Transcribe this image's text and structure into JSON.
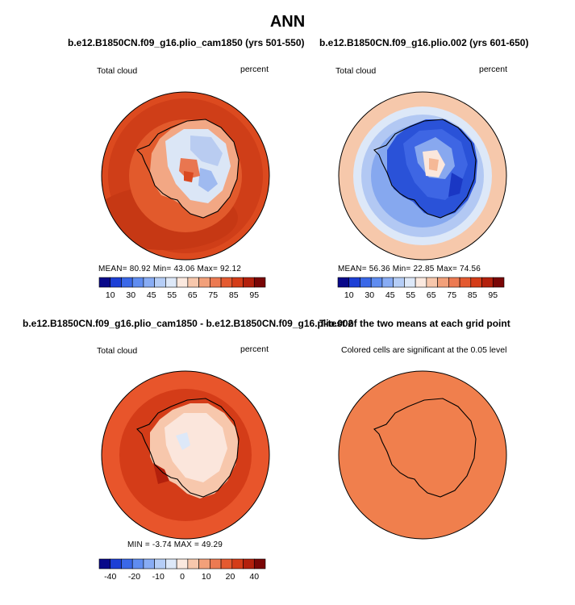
{
  "title": "ANN",
  "panels": [
    {
      "title": "b.e12.B1850CN.f09_g16.plio_cam1850 (yrs 501-550)",
      "variable": "Total cloud",
      "units": "percent",
      "stats": {
        "mean": "80.92",
        "min": "43.06",
        "max": "92.12"
      },
      "stats_text": "MEAN=   80.92   Min=   43.06   Max=   92.12"
    },
    {
      "title": "b.e12.B1850CN.f09_g16.plio.002 (yrs 601-650)",
      "variable": "Total cloud",
      "units": "percent",
      "stats": {
        "mean": "56.36",
        "min": "22.85",
        "max": "74.56"
      },
      "stats_text": "MEAN=   56.36   Min=   22.85   Max=   74.56"
    },
    {
      "title": "b.e12.B1850CN.f09_g16.plio_cam1850 - b.e12.B1850CN.f09_g16.plio.002",
      "variable": "Total cloud",
      "units": "percent",
      "stats": {
        "min": "-3.74",
        "max": "49.29"
      },
      "stats_text": "MIN =   -3.74  MAX =   49.29"
    },
    {
      "title": "T-test of the two means at each grid point",
      "subtitle": "Colored cells are significant at the 0.05 level"
    }
  ],
  "colorbar_abs": {
    "colors": [
      "#08088a",
      "#1c3fd6",
      "#3a68e8",
      "#5f8cf0",
      "#88acf4",
      "#b5cdf6",
      "#dde8f8",
      "#fbe9df",
      "#f7c7ac",
      "#f2a07a",
      "#ec7a52",
      "#e45a30",
      "#d43c18",
      "#b3200c",
      "#7a0606"
    ],
    "tick_labels": [
      "10",
      "30",
      "45",
      "55",
      "65",
      "75",
      "85",
      "95"
    ]
  },
  "colorbar_diff": {
    "colors": [
      "#08088a",
      "#1c3fd6",
      "#3a68e8",
      "#5f8cf0",
      "#88acf4",
      "#b5cdf6",
      "#dde8f8",
      "#fbe9df",
      "#f7c7ac",
      "#f2a07a",
      "#ec7a52",
      "#e45a30",
      "#d43c18",
      "#b3200c",
      "#7a0606"
    ],
    "tick_labels": [
      "-40",
      "-20",
      "-10",
      "0",
      "10",
      "20",
      "40"
    ]
  },
  "colors": {
    "ocean_panel1": "#dd4a1e",
    "ocean_panel2": "#f6c8ac",
    "ocean_panel3": "#e8542a",
    "ttest_fill": "#f07f4d"
  }
}
